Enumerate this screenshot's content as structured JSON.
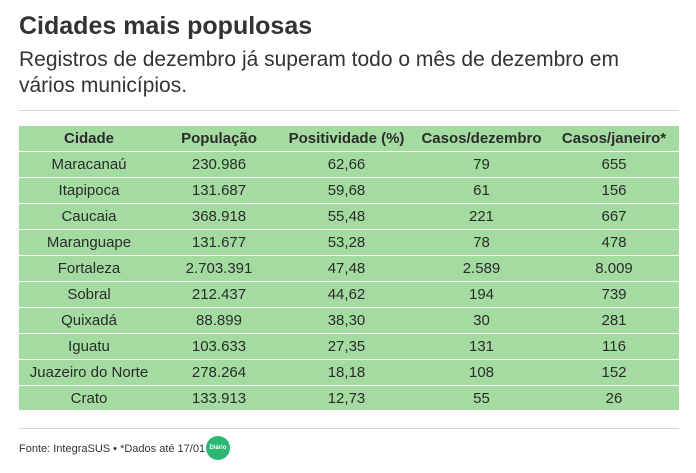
{
  "header": {
    "title": "Cidades mais populosas",
    "subtitle": "Registros de dezembro já superam todo o mês de dezembro em vários municípios."
  },
  "colors": {
    "table_bg": "#a3dba0",
    "row_divider": "#ffffff",
    "logo_bg": "#2bb673"
  },
  "chart_data": {
    "type": "table",
    "columns": [
      "Cidade",
      "População",
      "Positividade (%)",
      "Casos/dezembro",
      "Casos/janeiro*"
    ],
    "rows": [
      [
        "Maracanaú",
        "230.986",
        "62,66",
        "79",
        "655"
      ],
      [
        "Itapipoca",
        "131.687",
        "59,68",
        "61",
        "156"
      ],
      [
        "Caucaia",
        "368.918",
        "55,48",
        "221",
        "667"
      ],
      [
        "Maranguape",
        "131.677",
        "53,28",
        "78",
        "478"
      ],
      [
        "Fortaleza",
        "2.703.391",
        "47,48",
        "2.589",
        "8.009"
      ],
      [
        "Sobral",
        "212.437",
        "44,62",
        "194",
        "739"
      ],
      [
        "Quixadá",
        "88.899",
        "38,30",
        "30",
        "281"
      ],
      [
        "Iguatu",
        "103.633",
        "27,35",
        "131",
        "116"
      ],
      [
        "Juazeiro do Norte",
        "278.264",
        "18,18",
        "108",
        "152"
      ],
      [
        "Crato",
        "133.913",
        "12,73",
        "55",
        "26"
      ]
    ]
  },
  "footer": {
    "source": "Fonte: IntegraSUS • *Dados até 17/01",
    "logo_text": "Diário"
  }
}
